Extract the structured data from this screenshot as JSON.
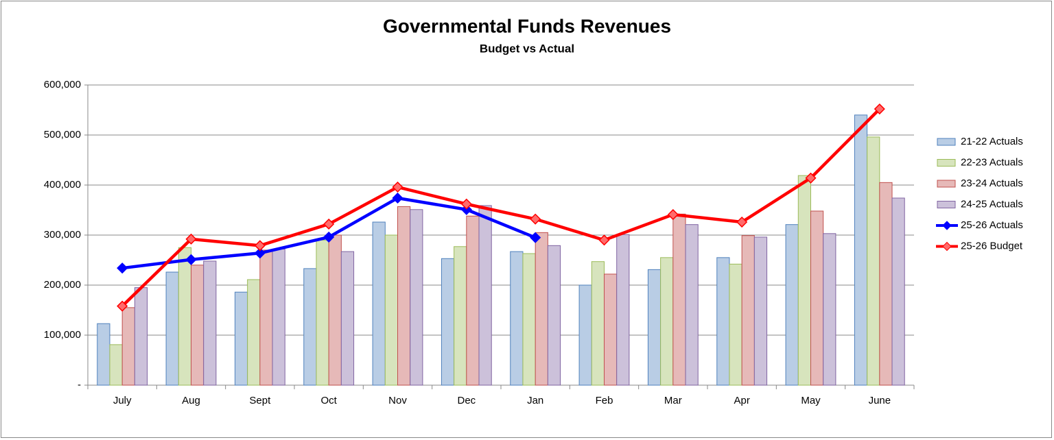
{
  "chart_data": {
    "type": "bar_line",
    "title": "Governmental Funds Revenues",
    "subtitle": "Budget vs Actual",
    "categories": [
      "July",
      "Aug",
      "Sept",
      "Oct",
      "Nov",
      "Dec",
      "Jan",
      "Feb",
      "Mar",
      "Apr",
      "May",
      "June"
    ],
    "ylim": [
      0,
      600000
    ],
    "yticks": [
      {
        "value": 0,
        "label": "-"
      },
      {
        "value": 100000,
        "label": "100,000"
      },
      {
        "value": 200000,
        "label": "200,000"
      },
      {
        "value": 300000,
        "label": "300,000"
      },
      {
        "value": 400000,
        "label": "400,000"
      },
      {
        "value": 500000,
        "label": "500,000"
      },
      {
        "value": 600000,
        "label": "600,000"
      }
    ],
    "grid": true,
    "legend": "right",
    "series": [
      {
        "name": "21-22 Actuals",
        "kind": "bar",
        "color": "#b9cde5",
        "values": [
          123000,
          226000,
          186000,
          233000,
          326000,
          253000,
          267000,
          200000,
          231000,
          255000,
          321000,
          540000
        ]
      },
      {
        "name": "22-23 Actuals",
        "kind": "bar",
        "color": "#d7e4bd",
        "values": [
          81000,
          275000,
          211000,
          290000,
          300000,
          277000,
          263000,
          247000,
          255000,
          242000,
          419000,
          496000
        ]
      },
      {
        "name": "23-24 Actuals",
        "kind": "bar",
        "color": "#e6b9b8",
        "values": [
          155000,
          240000,
          270000,
          300000,
          357000,
          338000,
          305000,
          222000,
          342000,
          299000,
          348000,
          405000
        ]
      },
      {
        "name": "24-25 Actuals",
        "kind": "bar",
        "color": "#ccc1da",
        "values": [
          195000,
          248000,
          272000,
          267000,
          351000,
          359000,
          279000,
          301000,
          321000,
          296000,
          303000,
          374000
        ]
      },
      {
        "name": "25-26 Actuals",
        "kind": "line",
        "color": "#0000ff",
        "values": [
          234000,
          251000,
          264000,
          296000,
          374000,
          351000,
          295000,
          null,
          null,
          null,
          null,
          null
        ]
      },
      {
        "name": "25-26 Budget",
        "kind": "line",
        "color": "#ff0000",
        "values": [
          158000,
          292000,
          279000,
          322000,
          396000,
          362000,
          332000,
          290000,
          341000,
          326000,
          414000,
          552000
        ]
      }
    ]
  }
}
